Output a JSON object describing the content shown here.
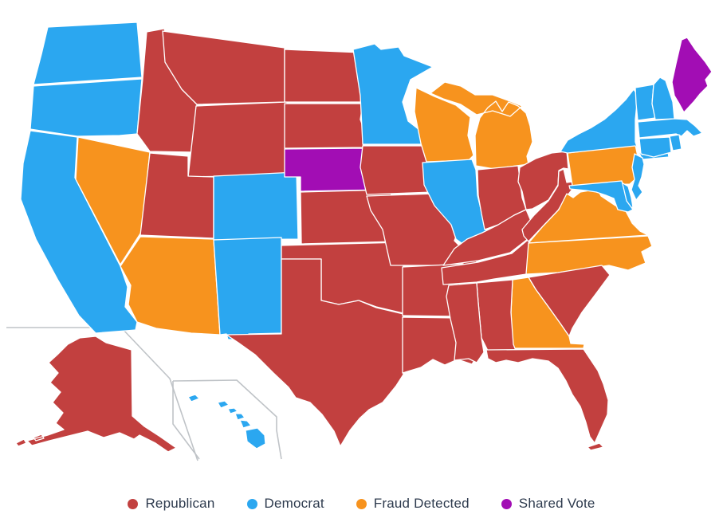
{
  "legend": {
    "items": [
      {
        "key": "republican",
        "label": "Republican",
        "color": "#C2403F"
      },
      {
        "key": "democrat",
        "label": "Democrat",
        "color": "#2BA7F0"
      },
      {
        "key": "fraud_detected",
        "label": "Fraud Detected",
        "color": "#F7931E"
      },
      {
        "key": "shared_vote",
        "label": "Shared Vote",
        "color": "#A20DB4"
      }
    ]
  },
  "map": {
    "background": "#ffffff",
    "state_border_color": "#ffffff",
    "inset_divider_color": "#bfc3c7",
    "states": [
      {
        "abbr": "WA",
        "name": "Washington",
        "category": "democrat"
      },
      {
        "abbr": "OR",
        "name": "Oregon",
        "category": "democrat"
      },
      {
        "abbr": "CA",
        "name": "California",
        "category": "democrat"
      },
      {
        "abbr": "NV",
        "name": "Nevada",
        "category": "fraud_detected"
      },
      {
        "abbr": "ID",
        "name": "Idaho",
        "category": "republican"
      },
      {
        "abbr": "MT",
        "name": "Montana",
        "category": "republican"
      },
      {
        "abbr": "WY",
        "name": "Wyoming",
        "category": "republican"
      },
      {
        "abbr": "UT",
        "name": "Utah",
        "category": "republican"
      },
      {
        "abbr": "CO",
        "name": "Colorado",
        "category": "democrat"
      },
      {
        "abbr": "AZ",
        "name": "Arizona",
        "category": "fraud_detected"
      },
      {
        "abbr": "NM",
        "name": "New Mexico",
        "category": "democrat"
      },
      {
        "abbr": "ND",
        "name": "North Dakota",
        "category": "republican"
      },
      {
        "abbr": "SD",
        "name": "South Dakota",
        "category": "republican"
      },
      {
        "abbr": "NE",
        "name": "Nebraska",
        "category": "shared_vote"
      },
      {
        "abbr": "KS",
        "name": "Kansas",
        "category": "republican"
      },
      {
        "abbr": "OK",
        "name": "Oklahoma",
        "category": "republican"
      },
      {
        "abbr": "TX",
        "name": "Texas",
        "category": "republican"
      },
      {
        "abbr": "MN",
        "name": "Minnesota",
        "category": "democrat"
      },
      {
        "abbr": "IA",
        "name": "Iowa",
        "category": "republican"
      },
      {
        "abbr": "MO",
        "name": "Missouri",
        "category": "republican"
      },
      {
        "abbr": "AR",
        "name": "Arkansas",
        "category": "republican"
      },
      {
        "abbr": "LA",
        "name": "Louisiana",
        "category": "republican"
      },
      {
        "abbr": "WI",
        "name": "Wisconsin",
        "category": "fraud_detected"
      },
      {
        "abbr": "IL",
        "name": "Illinois",
        "category": "democrat"
      },
      {
        "abbr": "MI",
        "name": "Michigan",
        "category": "fraud_detected"
      },
      {
        "abbr": "IN",
        "name": "Indiana",
        "category": "republican"
      },
      {
        "abbr": "OH",
        "name": "Ohio",
        "category": "republican"
      },
      {
        "abbr": "KY",
        "name": "Kentucky",
        "category": "republican"
      },
      {
        "abbr": "TN",
        "name": "Tennessee",
        "category": "republican"
      },
      {
        "abbr": "WV",
        "name": "West Virginia",
        "category": "republican"
      },
      {
        "abbr": "VA",
        "name": "Virginia",
        "category": "fraud_detected"
      },
      {
        "abbr": "NC",
        "name": "North Carolina",
        "category": "fraud_detected"
      },
      {
        "abbr": "SC",
        "name": "South Carolina",
        "category": "republican"
      },
      {
        "abbr": "GA",
        "name": "Georgia",
        "category": "fraud_detected"
      },
      {
        "abbr": "AL",
        "name": "Alabama",
        "category": "republican"
      },
      {
        "abbr": "MS",
        "name": "Mississippi",
        "category": "republican"
      },
      {
        "abbr": "FL",
        "name": "Florida",
        "category": "republican"
      },
      {
        "abbr": "PA",
        "name": "Pennsylvania",
        "category": "fraud_detected"
      },
      {
        "abbr": "NY",
        "name": "New York",
        "category": "democrat"
      },
      {
        "abbr": "VT",
        "name": "Vermont",
        "category": "democrat"
      },
      {
        "abbr": "NH",
        "name": "New Hampshire",
        "category": "democrat"
      },
      {
        "abbr": "ME",
        "name": "Maine",
        "category": "shared_vote"
      },
      {
        "abbr": "MA",
        "name": "Massachusetts",
        "category": "democrat"
      },
      {
        "abbr": "RI",
        "name": "Rhode Island",
        "category": "democrat"
      },
      {
        "abbr": "CT",
        "name": "Connecticut",
        "category": "democrat"
      },
      {
        "abbr": "NJ",
        "name": "New Jersey",
        "category": "democrat"
      },
      {
        "abbr": "DE",
        "name": "Delaware",
        "category": "democrat"
      },
      {
        "abbr": "MD",
        "name": "Maryland",
        "category": "democrat"
      },
      {
        "abbr": "AK",
        "name": "Alaska",
        "category": "republican"
      },
      {
        "abbr": "HI",
        "name": "Hawaii",
        "category": "democrat"
      }
    ]
  }
}
